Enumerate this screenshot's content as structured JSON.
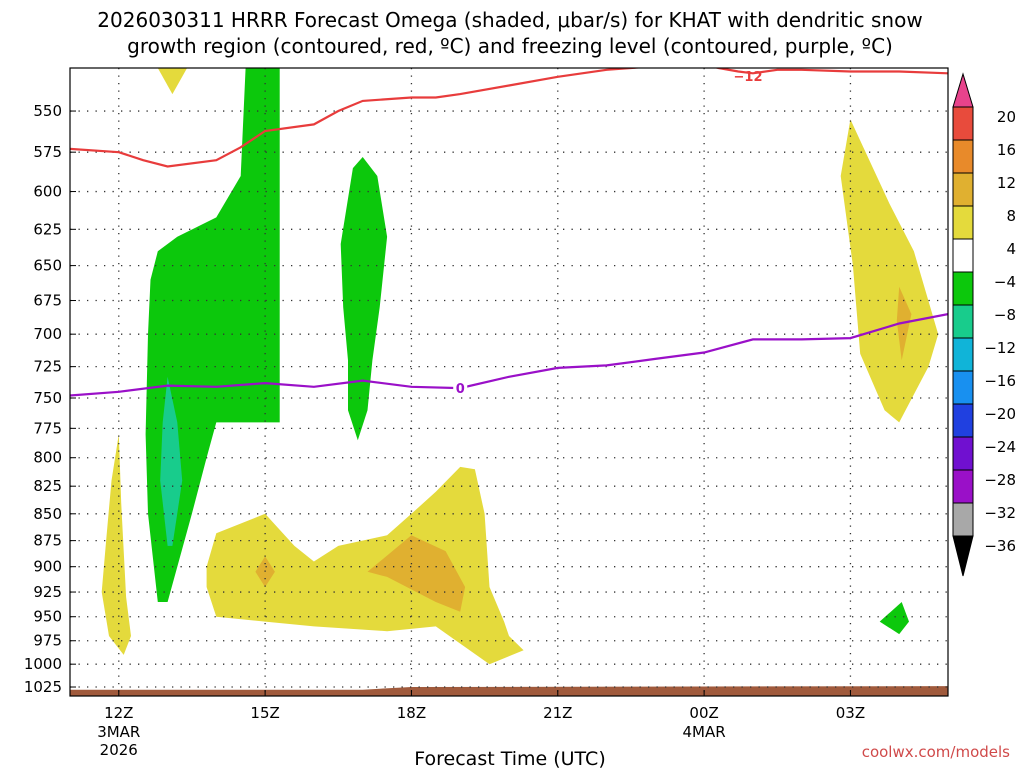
{
  "chart_data": {
    "type": "heatmap",
    "title_lines": [
      "2026030311 HRRR Forecast Omega (shaded, μbar/s) for KHAT with dendritic snow",
      "growth region (contoured, red, ºC) and freezing level (contoured, purple, ºC)"
    ],
    "xlabel": "Forecast Time (UTC)",
    "credit": "coolwx.com/models",
    "x_ticks": [
      {
        "hour": 12,
        "label": "12Z",
        "sub": [
          "3MAR",
          "2026"
        ]
      },
      {
        "hour": 15,
        "label": "15Z",
        "sub": []
      },
      {
        "hour": 18,
        "label": "18Z",
        "sub": []
      },
      {
        "hour": 21,
        "label": "21Z",
        "sub": []
      },
      {
        "hour": 24,
        "label": "00Z",
        "sub": [
          "4MAR"
        ]
      },
      {
        "hour": 27,
        "label": "03Z",
        "sub": []
      }
    ],
    "xlim": [
      11,
      29
    ],
    "y_ticks": [
      550,
      575,
      600,
      625,
      650,
      675,
      700,
      725,
      750,
      775,
      800,
      825,
      850,
      875,
      900,
      925,
      950,
      975,
      1000,
      1025
    ],
    "ylim_hpa": [
      1035,
      525
    ],
    "y_scale": "log-pressure",
    "colorbar": {
      "ticks": [
        "20",
        "16",
        "12",
        "8",
        "4",
        "−4",
        "−8",
        "−12",
        "−16",
        "−20",
        "−24",
        "−28",
        "−32",
        "−36"
      ],
      "colors": [
        "#e8438c",
        "#e84b3c",
        "#e88a2a",
        "#e0b030",
        "#e4da3c",
        "#ffffff",
        "#0cc80c",
        "#18cc8c",
        "#10b4d8",
        "#1890f0",
        "#2040e0",
        "#7010d0",
        "#9a10c8",
        "#a8a8a8",
        "#000000"
      ]
    },
    "contours": {
      "dgz_label": "−12",
      "freezing_label": "0",
      "dgz_color": "#e83c3c",
      "freezing_color": "#9a10c8",
      "dgz_line": [
        [
          11,
          573
        ],
        [
          12,
          575
        ],
        [
          12.5,
          580
        ],
        [
          13,
          584
        ],
        [
          14,
          580
        ],
        [
          14.5,
          572
        ],
        [
          15,
          562
        ],
        [
          16,
          558
        ],
        [
          16.5,
          550
        ],
        [
          17,
          544
        ],
        [
          18,
          542
        ],
        [
          18.5,
          542
        ],
        [
          19,
          540
        ],
        [
          20,
          535
        ],
        [
          21,
          530
        ],
        [
          22,
          526
        ],
        [
          23,
          524
        ],
        [
          24,
          523
        ],
        [
          24.3,
          525
        ],
        [
          24.7,
          527
        ],
        [
          25,
          528
        ],
        [
          25.5,
          526
        ],
        [
          26,
          526
        ],
        [
          27,
          527
        ],
        [
          28,
          527
        ],
        [
          29,
          528
        ]
      ],
      "freezing_line": [
        [
          11,
          748
        ],
        [
          12,
          745
        ],
        [
          13,
          740
        ],
        [
          14,
          741
        ],
        [
          15,
          738
        ],
        [
          16,
          741
        ],
        [
          17,
          736
        ],
        [
          18,
          741
        ],
        [
          19,
          742
        ],
        [
          20,
          733
        ],
        [
          21,
          726
        ],
        [
          22,
          724
        ],
        [
          23,
          719
        ],
        [
          24,
          714
        ],
        [
          25,
          704
        ],
        [
          26,
          704
        ],
        [
          27,
          703
        ],
        [
          28,
          692
        ],
        [
          29,
          685
        ]
      ]
    },
    "regions": [
      {
        "name": "rising-dgz-lobe",
        "omega_range": [
          -8,
          -4
        ],
        "color": "#0cc80c",
        "points": [
          [
            14.6,
            525
          ],
          [
            15.3,
            525
          ],
          [
            15.3,
            770
          ],
          [
            14.9,
            770
          ],
          [
            14.9,
            770
          ],
          [
            14,
            770
          ],
          [
            13.8,
            800
          ],
          [
            13.5,
            850
          ],
          [
            13.0,
            935
          ],
          [
            12.8,
            935
          ],
          [
            12.6,
            850
          ],
          [
            12.55,
            780
          ],
          [
            12.6,
            700
          ],
          [
            12.65,
            660
          ],
          [
            12.8,
            640
          ],
          [
            13.2,
            630
          ],
          [
            14,
            617
          ],
          [
            14.5,
            590
          ]
        ]
      },
      {
        "name": "column-17z",
        "omega_range": [
          -8,
          -4
        ],
        "color": "#0cc80c",
        "points": [
          [
            17.0,
            578
          ],
          [
            17.3,
            590
          ],
          [
            17.5,
            630
          ],
          [
            17.35,
            680
          ],
          [
            17.2,
            720
          ],
          [
            17.1,
            760
          ],
          [
            16.9,
            785
          ],
          [
            16.7,
            760
          ],
          [
            16.7,
            720
          ],
          [
            16.6,
            680
          ],
          [
            16.55,
            635
          ],
          [
            16.8,
            585
          ]
        ]
      },
      {
        "name": "core-13z",
        "omega_range": [
          -12,
          -8
        ],
        "color": "#18cc8c",
        "points": [
          [
            13.0,
            733
          ],
          [
            13.2,
            770
          ],
          [
            13.3,
            820
          ],
          [
            13.1,
            880
          ],
          [
            13.0,
            880
          ],
          [
            12.85,
            820
          ],
          [
            12.9,
            770
          ]
        ]
      },
      {
        "name": "sink-left-strip",
        "omega_range": [
          4,
          8
        ],
        "color": "#e4da3c",
        "points": [
          [
            12.0,
            780
          ],
          [
            12.05,
            840
          ],
          [
            12.15,
            930
          ],
          [
            12.25,
            970
          ],
          [
            12.1,
            990
          ],
          [
            11.8,
            970
          ],
          [
            11.65,
            925
          ],
          [
            11.75,
            870
          ],
          [
            11.85,
            820
          ]
        ]
      },
      {
        "name": "sink-lower-middle",
        "omega_range": [
          4,
          8
        ],
        "color": "#e4da3c",
        "points": [
          [
            14.0,
            868
          ],
          [
            15.0,
            850
          ],
          [
            15.6,
            880
          ],
          [
            16.0,
            895
          ],
          [
            16.5,
            880
          ],
          [
            17.5,
            870
          ],
          [
            18.0,
            850
          ],
          [
            18.5,
            830
          ],
          [
            19.0,
            808
          ],
          [
            19.3,
            810
          ],
          [
            19.5,
            850
          ],
          [
            19.6,
            920
          ],
          [
            19.9,
            955
          ],
          [
            20.0,
            970
          ],
          [
            20.3,
            985
          ],
          [
            19.6,
            1000
          ],
          [
            18.5,
            960
          ],
          [
            17.5,
            965
          ],
          [
            16.0,
            960
          ],
          [
            15.0,
            955
          ],
          [
            14.0,
            950
          ],
          [
            13.8,
            920
          ],
          [
            13.8,
            900
          ]
        ]
      },
      {
        "name": "sink-lower-core-a",
        "omega_range": [
          8,
          12
        ],
        "color": "#e0b030",
        "points": [
          [
            15.0,
            890
          ],
          [
            15.2,
            905
          ],
          [
            15.0,
            920
          ],
          [
            14.8,
            905
          ]
        ]
      },
      {
        "name": "sink-lower-core-b",
        "omega_range": [
          8,
          12
        ],
        "color": "#e0b030",
        "points": [
          [
            18.0,
            870
          ],
          [
            18.7,
            885
          ],
          [
            19.1,
            920
          ],
          [
            19.0,
            945
          ],
          [
            18.5,
            935
          ],
          [
            17.5,
            910
          ],
          [
            17.1,
            905
          ]
        ]
      },
      {
        "name": "sink-right",
        "omega_range": [
          4,
          8
        ],
        "color": "#e4da3c",
        "points": [
          [
            27.0,
            555
          ],
          [
            27.8,
            608
          ],
          [
            28.3,
            640
          ],
          [
            28.8,
            700
          ],
          [
            28.6,
            725
          ],
          [
            28.0,
            770
          ],
          [
            27.7,
            760
          ],
          [
            27.2,
            715
          ],
          [
            27.05,
            650
          ],
          [
            26.8,
            590
          ]
        ]
      },
      {
        "name": "sink-right-core",
        "omega_range": [
          8,
          12
        ],
        "color": "#e0b030",
        "points": [
          [
            28.0,
            665
          ],
          [
            28.25,
            685
          ],
          [
            28.05,
            720
          ],
          [
            27.95,
            690
          ]
        ]
      },
      {
        "name": "rising-right-blob",
        "omega_range": [
          -8,
          -4
        ],
        "color": "#0cc80c",
        "points": [
          [
            28.05,
            935
          ],
          [
            28.2,
            955
          ],
          [
            28.0,
            968
          ],
          [
            27.6,
            955
          ]
        ]
      },
      {
        "name": "sink-top",
        "omega_range": [
          4,
          8
        ],
        "color": "#e4da3c",
        "points": [
          [
            12.8,
            525
          ],
          [
            13.4,
            525
          ],
          [
            13.1,
            540
          ]
        ]
      }
    ],
    "terrain": {
      "color": "#a05a3c",
      "points": [
        [
          11,
          1035
        ],
        [
          11,
          1028
        ],
        [
          17,
          1028
        ],
        [
          18,
          1025
        ],
        [
          29,
          1024
        ],
        [
          29,
          1035
        ]
      ]
    }
  }
}
